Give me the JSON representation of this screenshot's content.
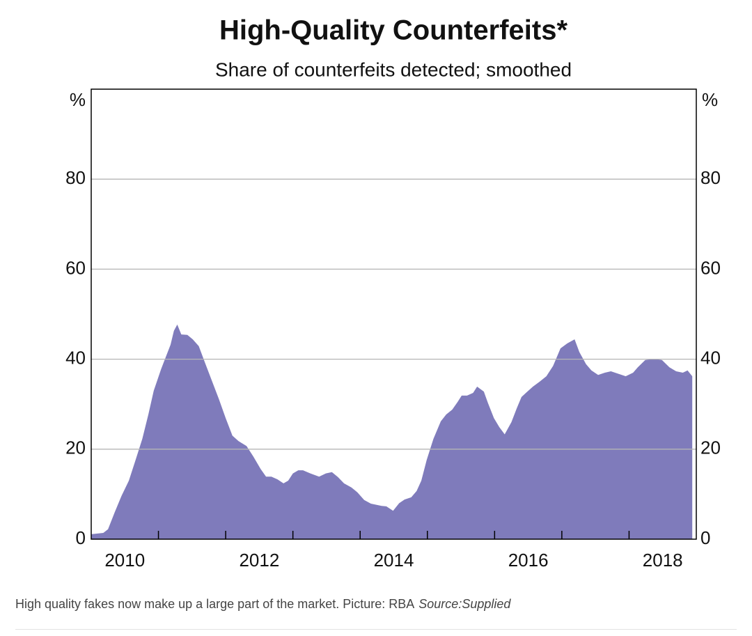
{
  "chart_data": {
    "type": "area",
    "title": "High-Quality Counterfeits*",
    "subtitle": "Share of counterfeits detected; smoothed",
    "y_unit": "%",
    "y2_unit": "%",
    "x": [
      2010.0,
      2010.18,
      2010.25,
      2010.35,
      2010.45,
      2010.56,
      2010.66,
      2010.76,
      2010.85,
      2010.93,
      2011.04,
      2011.12,
      2011.18,
      2011.23,
      2011.28,
      2011.34,
      2011.43,
      2011.51,
      2011.6,
      2011.69,
      2011.79,
      2011.9,
      2012.0,
      2012.1,
      2012.19,
      2012.31,
      2012.41,
      2012.52,
      2012.6,
      2012.68,
      2012.77,
      2012.86,
      2012.93,
      2013.0,
      2013.08,
      2013.15,
      2013.26,
      2013.39,
      2013.49,
      2013.58,
      2013.67,
      2013.76,
      2013.87,
      2013.96,
      2014.06,
      2014.16,
      2014.32,
      2014.39,
      2014.49,
      2014.58,
      2014.66,
      2014.76,
      2014.84,
      2014.91,
      2014.99,
      2015.09,
      2015.2,
      2015.28,
      2015.37,
      2015.45,
      2015.51,
      2015.59,
      2015.68,
      2015.74,
      2015.84,
      2015.9,
      2015.99,
      2016.07,
      2016.15,
      2016.25,
      2016.33,
      2016.4,
      2016.48,
      2016.57,
      2016.67,
      2016.77,
      2016.87,
      2016.98,
      2017.08,
      2017.19,
      2017.26,
      2017.36,
      2017.44,
      2017.54,
      2017.64,
      2017.73,
      2017.85,
      2017.95,
      2018.06,
      2018.13,
      2018.24,
      2018.37,
      2018.49,
      2018.6,
      2018.7,
      2018.8,
      2018.87,
      2018.94
    ],
    "series": [
      {
        "color": "#7f7bbb",
        "values": [
          1.1,
          1.4,
          2.2,
          6,
          9.6,
          13,
          17.6,
          22.3,
          27.7,
          33,
          37.8,
          40.9,
          43.2,
          46.3,
          47.7,
          45.5,
          45.4,
          44.4,
          42.9,
          39.3,
          35.4,
          31.1,
          26.9,
          23,
          21.8,
          20.7,
          18.4,
          15.6,
          13.9,
          13.9,
          13.3,
          12.4,
          13,
          14.6,
          15.3,
          15.3,
          14.6,
          13.9,
          14.6,
          14.9,
          13.8,
          12.4,
          11.5,
          10.4,
          8.7,
          7.9,
          7.4,
          7.3,
          6.3,
          8,
          8.8,
          9.3,
          10.7,
          13,
          17.6,
          22.3,
          26.2,
          27.7,
          28.8,
          30.5,
          31.9,
          31.9,
          32.5,
          33.9,
          32.8,
          30.3,
          26.9,
          24.9,
          23.3,
          26,
          29.1,
          31.6,
          32.7,
          33.9,
          35,
          36.2,
          38.5,
          42.4,
          43.5,
          44.4,
          41.6,
          38.9,
          37.5,
          36.5,
          37,
          37.3,
          36.7,
          36.2,
          37,
          38.2,
          39.8,
          40.1,
          39.8,
          38.2,
          37.3,
          37,
          37.5,
          36.2
        ]
      }
    ],
    "xlim": [
      2010,
      2019
    ],
    "xticks": [
      2011,
      2012,
      2013,
      2014,
      2015,
      2016,
      2017,
      2018
    ],
    "xlabels": [
      {
        "value": 2010.5,
        "label": "2010"
      },
      {
        "value": 2012.5,
        "label": "2012"
      },
      {
        "value": 2014.5,
        "label": "2014"
      },
      {
        "value": 2016.5,
        "label": "2016"
      },
      {
        "value": 2018.5,
        "label": "2018"
      }
    ],
    "ylim": [
      0,
      100
    ],
    "yticks": [
      0,
      20,
      40,
      60,
      80
    ],
    "y2lim": [
      0,
      100
    ],
    "y2ticks": [
      0,
      20,
      40,
      60,
      80
    ],
    "grid": true
  },
  "caption": {
    "text": "High quality fakes now make up a large part of the market. Picture: RBA",
    "source": "Source:Supplied"
  }
}
